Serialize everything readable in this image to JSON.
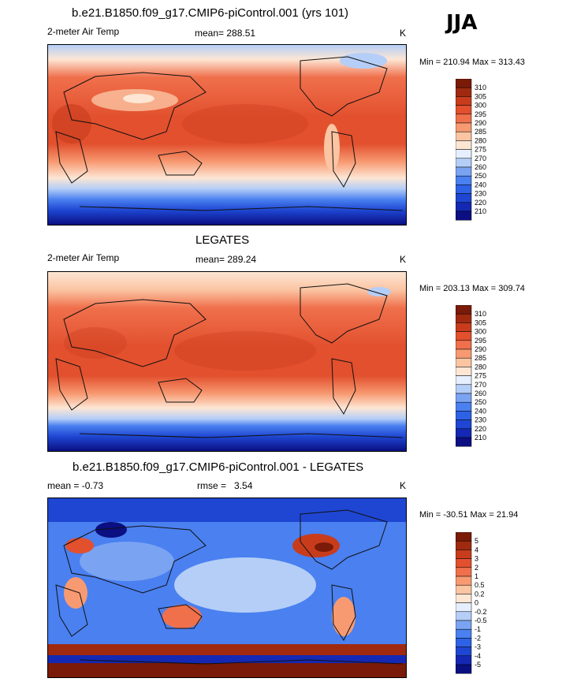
{
  "season": "JJA",
  "panels": [
    {
      "title": "b.e21.B1850.f09_g17.CMIP6-piControl.001 (yrs 101)",
      "variable": "2-meter Air Temp",
      "mean_label": "mean=",
      "mean_value": "288.51",
      "units": "K",
      "minmax": "Min = 210.94 Max = 313.43"
    },
    {
      "title": "LEGATES",
      "variable": "2-meter Air Temp",
      "mean_label": "mean=",
      "mean_value": "289.24",
      "units": "K",
      "minmax": "Min = 203.13 Max = 309.74"
    },
    {
      "title": "b.e21.B1850.f09_g17.CMIP6-piControl.001 - LEGATES",
      "mean_label": "mean =",
      "mean_value": "-0.73",
      "rmse_label": "rmse =",
      "rmse_value": "3.54",
      "units": "K",
      "minmax": "Min = -30.51 Max =  21.94"
    }
  ],
  "chart_data": [
    {
      "type": "heatmap",
      "title": "b.e21.B1850.f09_g17.CMIP6-piControl.001 (yrs 101)",
      "variable": "2-meter Air Temp",
      "units": "K",
      "mean": 288.51,
      "min": 210.94,
      "max": 313.43,
      "colorbar_levels": [
        "210",
        "220",
        "230",
        "240",
        "250",
        "260",
        "270",
        "275",
        "280",
        "285",
        "290",
        "295",
        "300",
        "305",
        "310"
      ],
      "colorbar_colors": [
        "#0b0f82",
        "#1428b4",
        "#1e46d2",
        "#2d62e6",
        "#4a80f0",
        "#7aa3f2",
        "#b4cef7",
        "#e6efff",
        "#fde6d4",
        "#fbc4a2",
        "#f79a72",
        "#f0704c",
        "#e2502e",
        "#c83c1c",
        "#a02a10",
        "#7a1a08"
      ]
    },
    {
      "type": "heatmap",
      "title": "LEGATES",
      "variable": "2-meter Air Temp",
      "units": "K",
      "mean": 289.24,
      "min": 203.13,
      "max": 309.74,
      "colorbar_levels": [
        "210",
        "220",
        "230",
        "240",
        "250",
        "260",
        "270",
        "275",
        "280",
        "285",
        "290",
        "295",
        "300",
        "305",
        "310"
      ],
      "colorbar_colors": [
        "#0b0f82",
        "#1428b4",
        "#1e46d2",
        "#2d62e6",
        "#4a80f0",
        "#7aa3f2",
        "#b4cef7",
        "#e6efff",
        "#fde6d4",
        "#fbc4a2",
        "#f79a72",
        "#f0704c",
        "#e2502e",
        "#c83c1c",
        "#a02a10",
        "#7a1a08"
      ]
    },
    {
      "type": "heatmap",
      "title": "b.e21.B1850.f09_g17.CMIP6-piControl.001 - LEGATES",
      "units": "K",
      "mean": -0.73,
      "rmse": 3.54,
      "min": -30.51,
      "max": 21.94,
      "colorbar_levels": [
        "-5",
        "-4",
        "-3",
        "-2",
        "-1",
        "-0.5",
        "-0.2",
        "0",
        "0.2",
        "0.5",
        "1",
        "2",
        "3",
        "4",
        "5"
      ],
      "colorbar_colors": [
        "#0b0f82",
        "#1428b4",
        "#1e46d2",
        "#2d62e6",
        "#4a80f0",
        "#7aa3f2",
        "#b4cef7",
        "#e6efff",
        "#fde6d4",
        "#fbc4a2",
        "#f79a72",
        "#f0704c",
        "#e2502e",
        "#c83c1c",
        "#a02a10",
        "#7a1a08"
      ]
    }
  ]
}
